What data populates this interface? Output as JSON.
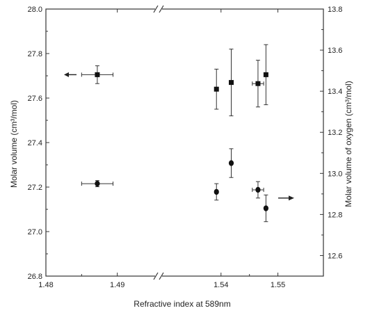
{
  "chart_data": {
    "type": "scatter",
    "title": "",
    "xlabel": "Refractive index at 589nm",
    "ylabel_left": "Molar volume (cm³/mol)",
    "ylabel_right": "Molar volume of oxygen (cm³/mol)",
    "x_axis_break": true,
    "x_segments": [
      {
        "range": [
          1.48,
          1.495
        ],
        "ticks": [
          1.48,
          1.49
        ],
        "tick_labels": [
          "1.48",
          "1.49"
        ]
      },
      {
        "range": [
          1.53,
          1.558
        ],
        "ticks": [
          1.54,
          1.55
        ],
        "tick_labels": [
          "1.54",
          "1.55"
        ]
      }
    ],
    "y_left": {
      "range": [
        26.8,
        28.0
      ],
      "ticks": [
        26.8,
        27.0,
        27.2,
        27.4,
        27.6,
        27.8,
        28.0
      ],
      "tick_labels": [
        "26.8",
        "27.0",
        "27.2",
        "27.4",
        "27.6",
        "27.8",
        "28.0"
      ]
    },
    "y_right": {
      "range": [
        12.5,
        13.8
      ],
      "ticks": [
        12.6,
        12.8,
        13.0,
        13.2,
        13.4,
        13.6,
        13.8
      ],
      "tick_labels": [
        "12.6",
        "12.8",
        "13.0",
        "13.2",
        "13.4",
        "13.6",
        "13.8"
      ]
    },
    "grid": false,
    "series": [
      {
        "marker": "square",
        "axis": "left",
        "points": [
          {
            "x": 1.4872,
            "y": 27.705,
            "yerr": 0.04,
            "xerr": 0.0022
          },
          {
            "x": 1.5392,
            "y": 27.64,
            "yerr": 0.09,
            "xerr": 0
          },
          {
            "x": 1.5418,
            "y": 27.67,
            "yerr": 0.15,
            "xerr": 0
          },
          {
            "x": 1.5465,
            "y": 27.665,
            "yerr": 0.105,
            "xerr": 0.001
          },
          {
            "x": 1.5479,
            "y": 27.705,
            "yerr": 0.135,
            "xerr": 0
          }
        ]
      },
      {
        "marker": "circle",
        "axis": "right",
        "points": [
          {
            "x": 1.4872,
            "y": 12.95,
            "yerr": 0.015,
            "xerr": 0.0022
          },
          {
            "x": 1.5392,
            "y": 12.91,
            "yerr": 0.04,
            "xerr": 0
          },
          {
            "x": 1.5418,
            "y": 13.05,
            "yerr": 0.07,
            "xerr": 0
          },
          {
            "x": 1.5465,
            "y": 12.92,
            "yerr": 0.04,
            "xerr": 0.001
          },
          {
            "x": 1.5479,
            "y": 12.83,
            "yerr": 0.065,
            "xerr": 0
          }
        ]
      }
    ],
    "annotations": [
      {
        "type": "arrow",
        "direction": "left",
        "meaning": "square series uses left axis"
      },
      {
        "type": "arrow",
        "direction": "right",
        "meaning": "circle series uses right axis"
      }
    ]
  }
}
